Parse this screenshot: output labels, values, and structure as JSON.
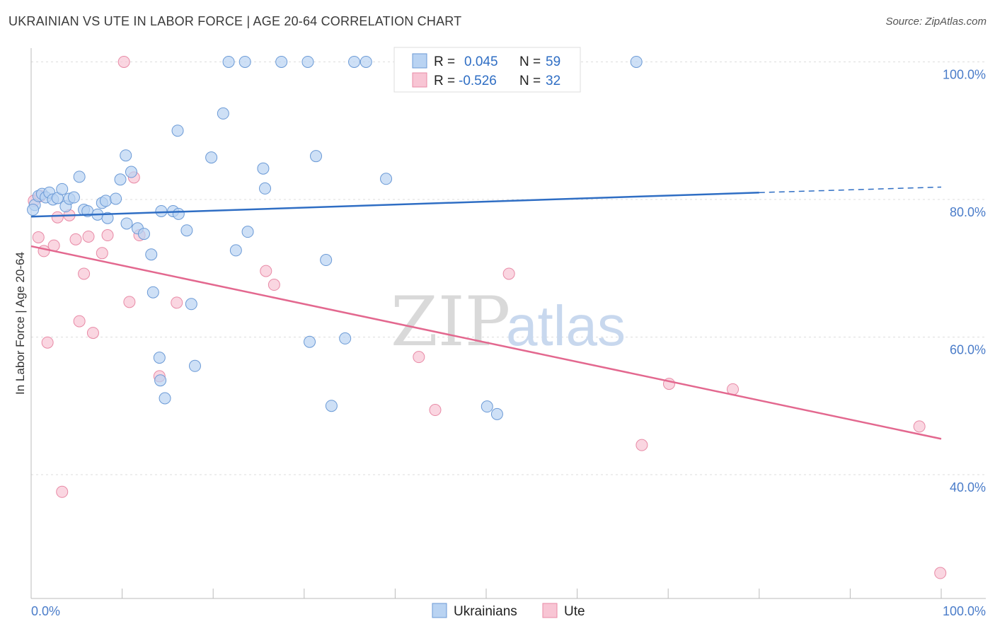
{
  "title": "UKRAINIAN VS UTE IN LABOR FORCE | AGE 20-64 CORRELATION CHART",
  "source": "Source: ZipAtlas.com",
  "watermark": {
    "zip": "ZIP",
    "atlas": "atlas"
  },
  "colors": {
    "ukrainians_fill": "#b9d3f2",
    "ukrainians_stroke": "#6b9ad6",
    "ukrainians_line": "#2f6ec4",
    "ute_fill": "#f8c5d4",
    "ute_stroke": "#e88aa6",
    "ute_line": "#e3688f",
    "tick_text": "#4a7cc9",
    "grid": "#dddddd"
  },
  "legend": {
    "rows": [
      {
        "r_label": "R =",
        "r_value": "0.045",
        "n_label": "N =",
        "n_value": "59"
      },
      {
        "r_label": "R =",
        "r_value": "-0.526",
        "n_label": "N =",
        "n_value": "32"
      }
    ]
  },
  "chart_data": {
    "type": "scatter",
    "title": "UKRAINIAN VS UTE IN LABOR FORCE | AGE 20-64 CORRELATION CHART",
    "xlabel": "",
    "ylabel": "In Labor Force | Age 20-64",
    "xlim": [
      0,
      100
    ],
    "ylim": [
      22,
      102
    ],
    "x_tick_labels": [
      "0.0%",
      "100.0%"
    ],
    "y_ticks": [
      40,
      60,
      80,
      100
    ],
    "y_tick_labels": [
      "40.0%",
      "60.0%",
      "80.0%",
      "100.0%"
    ],
    "grid": true,
    "series": [
      {
        "name": "Ukrainians",
        "r": 0.045,
        "n": 59,
        "trend": {
          "x0": 0,
          "y0": 77.5,
          "x1": 80,
          "y1": 81.0,
          "dash_to_x": 100,
          "dash_to_y": 81.8
        },
        "points": [
          [
            0.4,
            79.2
          ],
          [
            0.8,
            80.5
          ],
          [
            1.2,
            80.8
          ],
          [
            1.6,
            80.3
          ],
          [
            2.0,
            81.0
          ],
          [
            2.4,
            80.0
          ],
          [
            2.9,
            80.2
          ],
          [
            3.4,
            81.5
          ],
          [
            3.8,
            79.0
          ],
          [
            4.2,
            80.1
          ],
          [
            4.7,
            80.3
          ],
          [
            5.3,
            83.3
          ],
          [
            5.8,
            78.5
          ],
          [
            6.2,
            78.3
          ],
          [
            7.3,
            77.8
          ],
          [
            7.8,
            79.5
          ],
          [
            8.4,
            77.3
          ],
          [
            8.2,
            79.8
          ],
          [
            9.3,
            80.1
          ],
          [
            9.8,
            82.9
          ],
          [
            10.4,
            86.4
          ],
          [
            10.5,
            76.5
          ],
          [
            11.0,
            84.0
          ],
          [
            11.7,
            75.8
          ],
          [
            12.4,
            75.0
          ],
          [
            13.2,
            72.0
          ],
          [
            13.4,
            66.5
          ],
          [
            14.1,
            57.0
          ],
          [
            14.2,
            53.7
          ],
          [
            14.3,
            78.3
          ],
          [
            14.7,
            51.1
          ],
          [
            15.6,
            78.3
          ],
          [
            16.2,
            77.9
          ],
          [
            16.1,
            90.0
          ],
          [
            17.1,
            75.5
          ],
          [
            17.6,
            64.8
          ],
          [
            18.0,
            55.8
          ],
          [
            19.8,
            86.1
          ],
          [
            21.1,
            92.5
          ],
          [
            21.7,
            100.0
          ],
          [
            22.5,
            72.6
          ],
          [
            23.5,
            100.0
          ],
          [
            23.8,
            75.3
          ],
          [
            25.5,
            84.5
          ],
          [
            25.7,
            81.6
          ],
          [
            27.5,
            100.0
          ],
          [
            30.4,
            100.0
          ],
          [
            30.6,
            59.3
          ],
          [
            31.3,
            86.3
          ],
          [
            32.4,
            71.2
          ],
          [
            33.0,
            50.0
          ],
          [
            34.5,
            59.8
          ],
          [
            35.5,
            100.0
          ],
          [
            36.8,
            100.0
          ],
          [
            39.0,
            83.0
          ],
          [
            50.1,
            49.9
          ],
          [
            51.2,
            48.8
          ],
          [
            66.5,
            100.0
          ],
          [
            0.2,
            78.5
          ]
        ]
      },
      {
        "name": "Ute",
        "r": -0.526,
        "n": 32,
        "trend": {
          "x0": 0,
          "y0": 73.2,
          "x1": 100,
          "y1": 45.2
        },
        "points": [
          [
            0.3,
            79.8
          ],
          [
            0.8,
            74.5
          ],
          [
            1.4,
            72.5
          ],
          [
            1.8,
            59.2
          ],
          [
            2.5,
            73.3
          ],
          [
            2.9,
            77.4
          ],
          [
            3.4,
            37.5
          ],
          [
            4.2,
            77.7
          ],
          [
            4.9,
            74.2
          ],
          [
            5.3,
            62.3
          ],
          [
            5.8,
            69.2
          ],
          [
            6.3,
            74.6
          ],
          [
            6.8,
            60.6
          ],
          [
            7.8,
            72.2
          ],
          [
            8.4,
            74.8
          ],
          [
            10.2,
            100.0
          ],
          [
            10.8,
            65.1
          ],
          [
            11.3,
            83.2
          ],
          [
            11.9,
            74.8
          ],
          [
            14.1,
            54.3
          ],
          [
            16.0,
            65.0
          ],
          [
            25.8,
            69.6
          ],
          [
            26.7,
            67.6
          ],
          [
            42.6,
            57.1
          ],
          [
            44.4,
            49.4
          ],
          [
            52.5,
            69.2
          ],
          [
            67.1,
            44.3
          ],
          [
            70.1,
            53.2
          ],
          [
            77.1,
            52.4
          ],
          [
            97.6,
            47.0
          ],
          [
            99.9,
            25.7
          ],
          [
            1.0,
            80.5
          ]
        ]
      }
    ],
    "bottom_legend": [
      "Ukrainians",
      "Ute"
    ]
  }
}
